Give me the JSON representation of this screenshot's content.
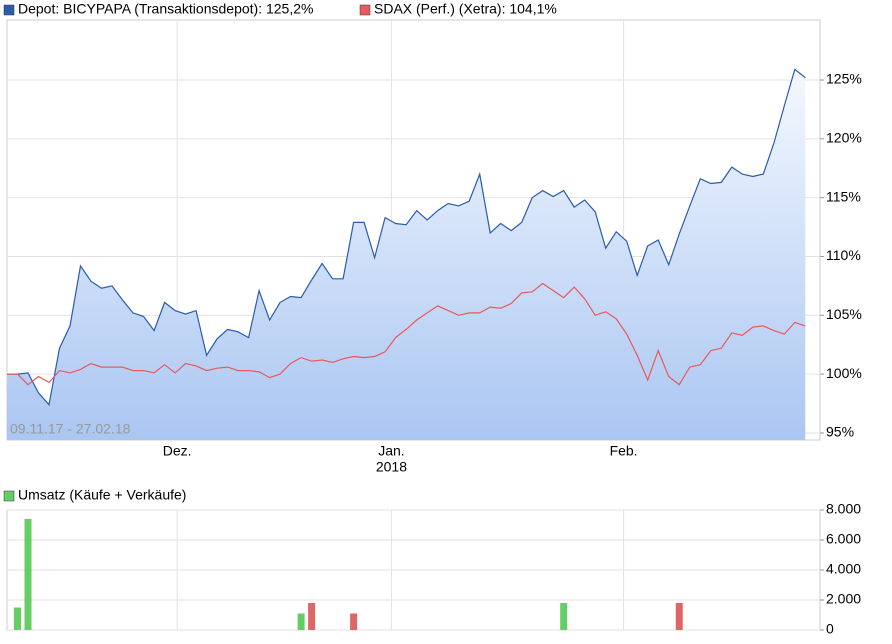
{
  "chart_data": [
    {
      "type": "area-line",
      "annotation": "09.11.17 - 27.02.18",
      "year_label": "2018",
      "xlim": [
        0,
        77.4
      ],
      "xticks": [
        {
          "value": 16.2,
          "label": "Dez."
        },
        {
          "value": 36.6,
          "label": "Jan."
        },
        {
          "value": 58.7,
          "label": "Feb."
        }
      ],
      "ylim": [
        94.4,
        130.1
      ],
      "yticks": [
        {
          "value": 95,
          "label": "95%"
        },
        {
          "value": 100,
          "label": "100%"
        },
        {
          "value": 105,
          "label": "105%"
        },
        {
          "value": 110,
          "label": "110%"
        },
        {
          "value": 115,
          "label": "115%"
        },
        {
          "value": 120,
          "label": "120%"
        },
        {
          "value": 125,
          "label": "125%"
        }
      ],
      "grid": true,
      "series": [
        {
          "name": "Depot: BICYPAPA (Transaktionsdepot): 125,2%",
          "color": "#2a5caa",
          "fill": true,
          "values": [
            100.0,
            100.0,
            100.1,
            98.4,
            97.4,
            102.2,
            104.1,
            109.2,
            107.9,
            107.3,
            107.5,
            106.3,
            105.2,
            104.9,
            103.7,
            106.1,
            105.4,
            105.1,
            105.4,
            101.6,
            103.0,
            103.8,
            103.6,
            103.1,
            107.1,
            104.6,
            106.1,
            106.6,
            106.5,
            108.0,
            109.4,
            108.1,
            108.1,
            112.9,
            112.9,
            109.9,
            113.3,
            112.8,
            112.7,
            113.9,
            113.1,
            113.9,
            114.5,
            114.3,
            114.7,
            117.0,
            112.0,
            112.8,
            112.2,
            112.9,
            115.0,
            115.6,
            115.1,
            115.6,
            114.2,
            114.8,
            113.8,
            110.7,
            112.1,
            111.3,
            108.4,
            110.9,
            111.4,
            109.3,
            111.9,
            114.3,
            116.6,
            116.2,
            116.3,
            117.6,
            117.0,
            116.8,
            117.0,
            119.6,
            122.8,
            125.9,
            125.2
          ]
        },
        {
          "name": "SDAX (Perf.) (Xetra): 104,1%",
          "color": "#e85a5a",
          "fill": false,
          "values": [
            100.0,
            100.0,
            99.1,
            99.8,
            99.3,
            100.3,
            100.1,
            100.4,
            100.9,
            100.6,
            100.6,
            100.6,
            100.3,
            100.3,
            100.1,
            100.8,
            100.1,
            100.9,
            100.7,
            100.3,
            100.5,
            100.6,
            100.3,
            100.3,
            100.2,
            99.7,
            100.0,
            100.9,
            101.4,
            101.1,
            101.2,
            101.0,
            101.3,
            101.5,
            101.4,
            101.5,
            101.9,
            103.1,
            103.8,
            104.6,
            105.2,
            105.8,
            105.4,
            105.0,
            105.2,
            105.2,
            105.7,
            105.6,
            106.0,
            106.9,
            107.0,
            107.7,
            107.1,
            106.5,
            107.4,
            106.4,
            105.0,
            105.3,
            104.7,
            103.4,
            101.6,
            99.5,
            102.0,
            99.8,
            99.1,
            100.6,
            100.8,
            102.0,
            102.2,
            103.5,
            103.3,
            104.0,
            104.1,
            103.7,
            103.4,
            104.4,
            104.1
          ]
        }
      ]
    },
    {
      "type": "bar",
      "xlim": [
        0,
        77.4
      ],
      "xticks": [
        16.2,
        36.6,
        58.7
      ],
      "ylim": [
        0,
        8000
      ],
      "yticks": [
        {
          "value": 0,
          "label": "0"
        },
        {
          "value": 2000,
          "label": "2.000"
        },
        {
          "value": 4000,
          "label": "4.000"
        },
        {
          "value": 6000,
          "label": "6.000"
        },
        {
          "value": 8000,
          "label": "8.000"
        }
      ],
      "grid": true,
      "series": [
        {
          "name": "Umsatz (Käufe + Verkäufe)",
          "color": "#66cc66",
          "x": [
            1,
            2,
            28,
            29,
            33,
            53,
            64
          ],
          "values": [
            1500,
            7400,
            1100,
            1800,
            1100,
            1800,
            1800
          ],
          "colors": [
            "#66cc66",
            "#66cc66",
            "#66cc66",
            "#dd6666",
            "#dd6666",
            "#66cc66",
            "#dd6666"
          ]
        }
      ]
    }
  ]
}
